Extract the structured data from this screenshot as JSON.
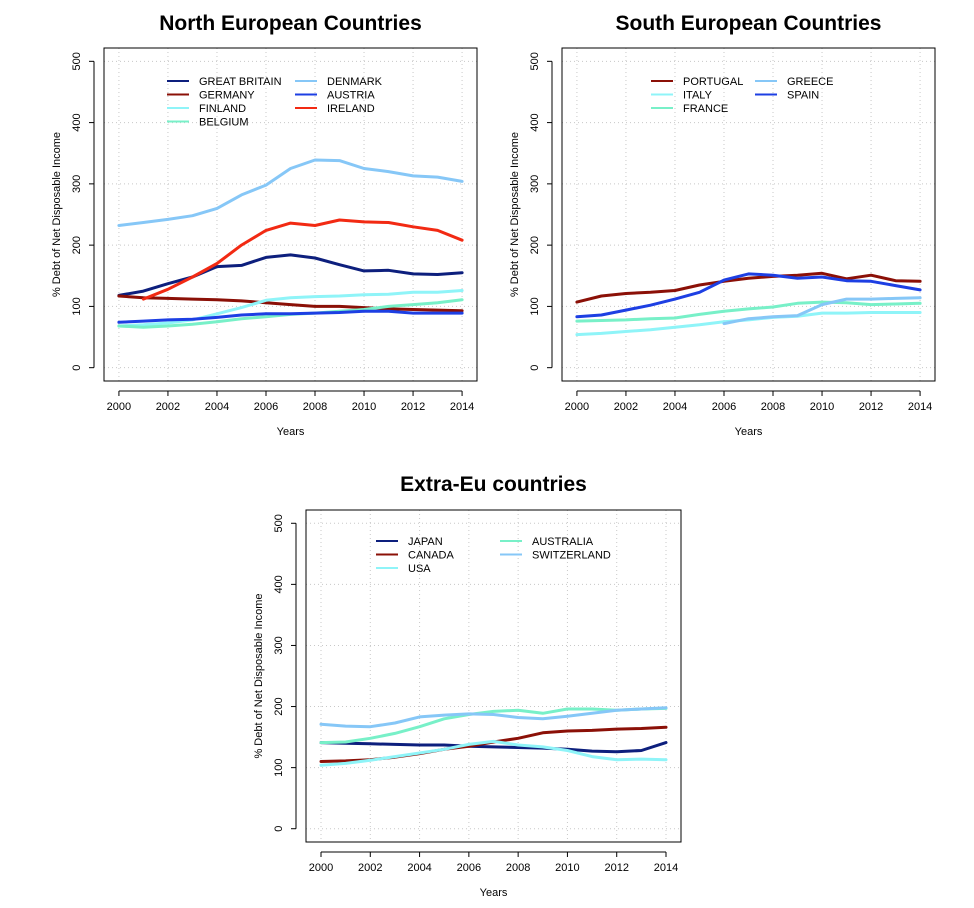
{
  "colors": {
    "navy": "#0d1f7d",
    "darkred": "#8b1007",
    "lightcyan": "#8ff4f8",
    "aquamarine": "#78f0c8",
    "skyblue": "#86c7f7",
    "blue": "#1d3fe3",
    "red": "#f22a13"
  },
  "chart_data": [
    {
      "type": "line",
      "title": "North European Countries",
      "xlabel": "Years",
      "ylabel": "% Debt of Net Disposable Income",
      "xlim": [
        2000,
        2014
      ],
      "ylim": [
        0,
        500
      ],
      "xticks": [
        "2000",
        "2002",
        "2004",
        "2006",
        "2008",
        "2010",
        "2012",
        "2014"
      ],
      "yticks": [
        "0",
        "100",
        "200",
        "300",
        "400",
        "500"
      ],
      "grid": true,
      "legend": "top-center, 2 columns",
      "x": [
        2000,
        2001,
        2002,
        2003,
        2004,
        2005,
        2006,
        2007,
        2008,
        2009,
        2010,
        2011,
        2012,
        2013,
        2014
      ],
      "series": [
        {
          "name": "GREAT BRITAIN",
          "color": "navy",
          "values": [
            118,
            125,
            137,
            148,
            165,
            167,
            180,
            184,
            179,
            168,
            158,
            159,
            153,
            152,
            155
          ]
        },
        {
          "name": "GERMANY",
          "color": "darkred",
          "values": [
            117,
            114,
            113,
            112,
            111,
            109,
            106,
            103,
            100,
            100,
            98,
            96,
            95,
            94,
            93
          ]
        },
        {
          "name": "FINLAND",
          "color": "lightcyan",
          "values": [
            68,
            70,
            73,
            78,
            88,
            98,
            110,
            114,
            116,
            117,
            119,
            120,
            123,
            123,
            126
          ]
        },
        {
          "name": "BELGIUM",
          "color": "aquamarine",
          "values": [
            68,
            66,
            68,
            71,
            75,
            80,
            83,
            87,
            89,
            92,
            95,
            100,
            103,
            106,
            111
          ]
        },
        {
          "name": "DENMARK",
          "color": "skyblue",
          "values": [
            232,
            237,
            242,
            248,
            260,
            282,
            298,
            325,
            339,
            338,
            325,
            320,
            313,
            311,
            304
          ]
        },
        {
          "name": "AUSTRIA",
          "color": "blue",
          "values": [
            74,
            76,
            78,
            79,
            82,
            86,
            88,
            88,
            89,
            90,
            92,
            92,
            89,
            89,
            89
          ]
        },
        {
          "name": "IRELAND",
          "color": "red",
          "values": [
            null,
            112,
            128,
            148,
            170,
            200,
            224,
            236,
            232,
            241,
            238,
            237,
            230,
            224,
            208
          ]
        }
      ]
    },
    {
      "type": "line",
      "title": "South European Countries",
      "xlabel": "Years",
      "ylabel": "% Debt of Net Disposable Income",
      "xlim": [
        2000,
        2014
      ],
      "ylim": [
        0,
        500
      ],
      "xticks": [
        "2000",
        "2002",
        "2004",
        "2006",
        "2008",
        "2010",
        "2012",
        "2014"
      ],
      "yticks": [
        "0",
        "100",
        "200",
        "300",
        "400",
        "500"
      ],
      "grid": true,
      "legend": "top-center, 2 columns",
      "x": [
        2000,
        2001,
        2002,
        2003,
        2004,
        2005,
        2006,
        2007,
        2008,
        2009,
        2010,
        2011,
        2012,
        2013,
        2014
      ],
      "series": [
        {
          "name": "PORTUGAL",
          "color": "darkred",
          "values": [
            107,
            117,
            121,
            123,
            126,
            135,
            141,
            146,
            149,
            151,
            154,
            145,
            151,
            142,
            141
          ]
        },
        {
          "name": "ITALY",
          "color": "lightcyan",
          "values": [
            54,
            56,
            59,
            62,
            66,
            70,
            75,
            78,
            82,
            84,
            89,
            89,
            90,
            90,
            90
          ]
        },
        {
          "name": "FRANCE",
          "color": "aquamarine",
          "values": [
            76,
            77,
            78,
            80,
            81,
            87,
            92,
            96,
            99,
            105,
            107,
            106,
            103,
            104,
            105
          ]
        },
        {
          "name": "GREECE",
          "color": "skyblue",
          "values": [
            null,
            null,
            null,
            null,
            null,
            null,
            72,
            80,
            83,
            85,
            103,
            112,
            112,
            113,
            114
          ]
        },
        {
          "name": "SPAIN",
          "color": "blue",
          "values": [
            83,
            86,
            94,
            102,
            112,
            123,
            143,
            153,
            151,
            146,
            148,
            142,
            141,
            134,
            127
          ]
        }
      ]
    },
    {
      "type": "line",
      "title": "Extra-Eu countries",
      "xlabel": "Years",
      "ylabel": "% Debt of Net Disposable Income",
      "xlim": [
        2000,
        2014
      ],
      "ylim": [
        0,
        500
      ],
      "xticks": [
        "2000",
        "2002",
        "2004",
        "2006",
        "2008",
        "2010",
        "2012",
        "2014"
      ],
      "yticks": [
        "0",
        "100",
        "200",
        "300",
        "400",
        "500"
      ],
      "grid": true,
      "legend": "top-center, 2 columns",
      "x": [
        2000,
        2001,
        2002,
        2003,
        2004,
        2005,
        2006,
        2007,
        2008,
        2009,
        2010,
        2011,
        2012,
        2013,
        2014
      ],
      "series": [
        {
          "name": "JAPAN",
          "color": "navy",
          "values": [
            141,
            140,
            139,
            138,
            137,
            137,
            135,
            134,
            133,
            132,
            130,
            127,
            126,
            128,
            141
          ]
        },
        {
          "name": "CANADA",
          "color": "darkred",
          "values": [
            110,
            111,
            113,
            117,
            123,
            130,
            135,
            142,
            148,
            157,
            160,
            161,
            163,
            164,
            166
          ]
        },
        {
          "name": "USA",
          "color": "lightcyan",
          "values": [
            104,
            107,
            112,
            118,
            124,
            130,
            138,
            143,
            137,
            134,
            128,
            118,
            113,
            114,
            113
          ]
        },
        {
          "name": "AUSTRALIA",
          "color": "aquamarine",
          "values": [
            141,
            142,
            148,
            156,
            167,
            180,
            187,
            192,
            194,
            189,
            196,
            196,
            194,
            196,
            197
          ]
        },
        {
          "name": "SWITZERLAND",
          "color": "skyblue",
          "values": [
            171,
            168,
            167,
            173,
            183,
            186,
            188,
            187,
            182,
            180,
            184,
            189,
            194,
            196,
            198
          ]
        }
      ]
    }
  ]
}
